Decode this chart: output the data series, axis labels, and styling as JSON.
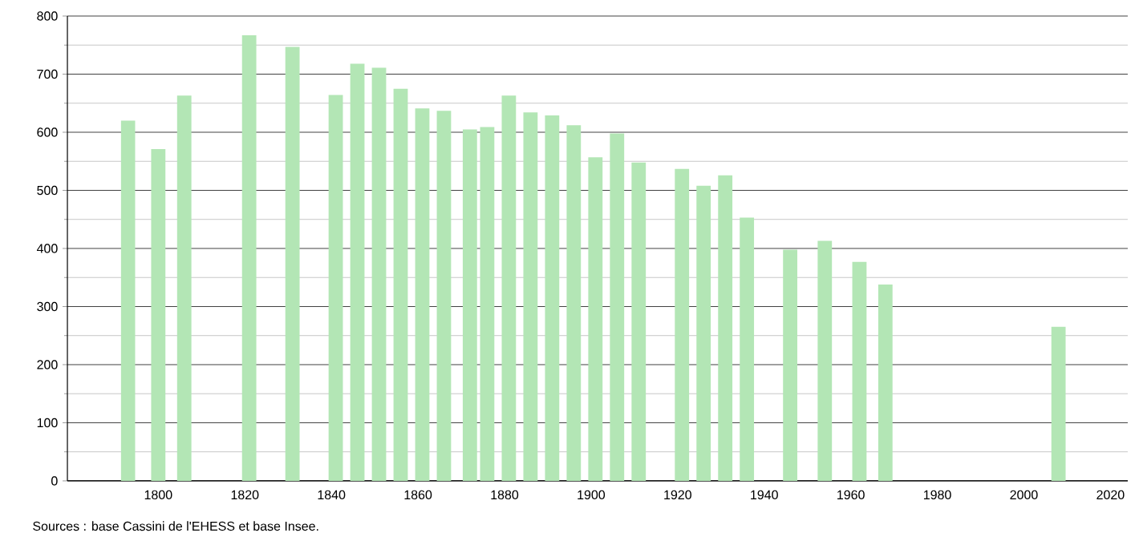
{
  "chart_data": {
    "type": "bar",
    "x": [
      1793,
      1800,
      1806,
      1821,
      1831,
      1841,
      1846,
      1851,
      1856,
      1861,
      1866,
      1872,
      1876,
      1881,
      1886,
      1891,
      1896,
      1901,
      1906,
      1911,
      1921,
      1926,
      1931,
      1936,
      1946,
      1954,
      1962,
      1968,
      2008
    ],
    "values": [
      620,
      571,
      663,
      767,
      747,
      664,
      718,
      711,
      675,
      641,
      637,
      605,
      609,
      663,
      634,
      629,
      612,
      557,
      598,
      548,
      537,
      508,
      526,
      453,
      398,
      413,
      377,
      338,
      265
    ],
    "color": "#b3e6b5",
    "xlim": [
      1779,
      2024
    ],
    "xticks": [
      1800,
      1820,
      1840,
      1860,
      1880,
      1900,
      1920,
      1940,
      1960,
      1980,
      2000,
      2020
    ],
    "ylim": [
      0,
      800
    ],
    "yticks": [
      0,
      100,
      200,
      300,
      400,
      500,
      600,
      700,
      800
    ],
    "grid": "y",
    "annotations": [
      "Sources : base Cassini de l'EHESS et base Insee."
    ]
  }
}
